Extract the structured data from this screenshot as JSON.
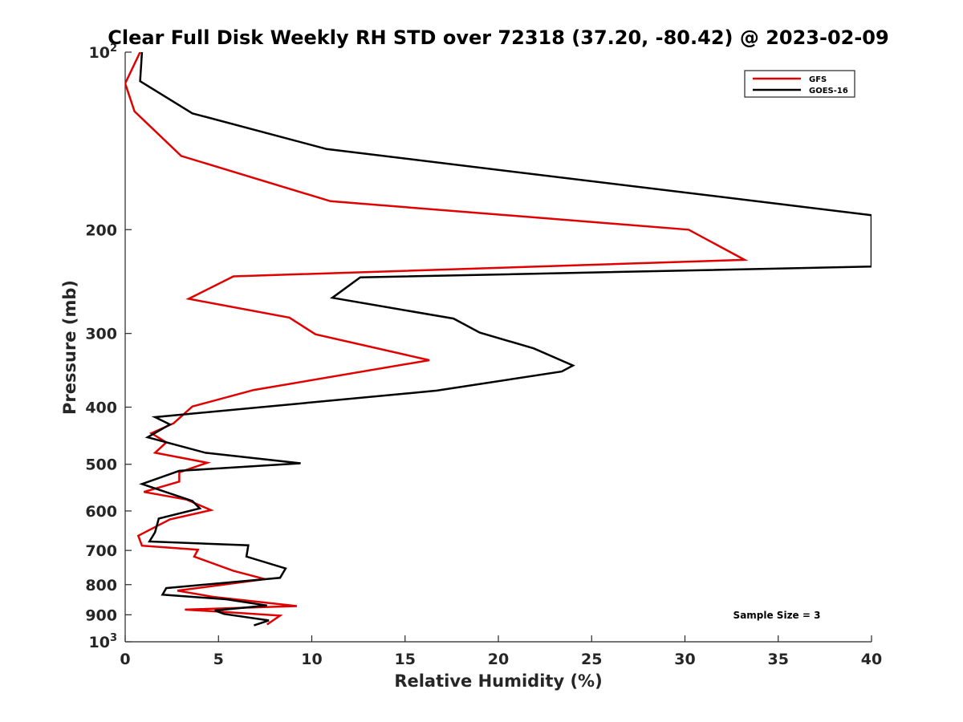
{
  "chart_data": {
    "type": "line",
    "title": "Clear Full Disk Weekly RH STD over 72318 (37.20, -80.42) @ 2023-02-09",
    "xlabel": "Relative Humidity (%)",
    "ylabel": "Pressure (mb)",
    "xlim": [
      0,
      40
    ],
    "ylim": [
      100,
      1000
    ],
    "y_scale": "log",
    "y_reversed": true,
    "x_ticks": [
      0,
      5,
      10,
      15,
      20,
      25,
      30,
      35,
      40
    ],
    "y_ticks": [
      {
        "value": 100,
        "base": "10",
        "exp": "2"
      },
      {
        "value": 200,
        "label": "200"
      },
      {
        "value": 300,
        "label": "300"
      },
      {
        "value": 400,
        "label": "400"
      },
      {
        "value": 500,
        "label": "500"
      },
      {
        "value": 600,
        "label": "600"
      },
      {
        "value": 700,
        "label": "700"
      },
      {
        "value": 800,
        "label": "800"
      },
      {
        "value": 900,
        "label": "900"
      },
      {
        "value": 1000,
        "base": "10",
        "exp": "3"
      }
    ],
    "grid": false,
    "legend_position": "top-right",
    "annotation": "Sample Size = 3",
    "series": [
      {
        "name": "GFS",
        "color": "#e00000",
        "points": [
          [
            0.8,
            100
          ],
          [
            0.0,
            113
          ],
          [
            0.5,
            126
          ],
          [
            3.0,
            150
          ],
          [
            11.0,
            179
          ],
          [
            30.2,
            200
          ],
          [
            33.2,
            225
          ],
          [
            5.8,
            240
          ],
          [
            3.4,
            262
          ],
          [
            8.8,
            282
          ],
          [
            10.2,
            301
          ],
          [
            16.3,
            333
          ],
          [
            6.9,
            374
          ],
          [
            3.6,
            399
          ],
          [
            2.6,
            426
          ],
          [
            1.4,
            443
          ],
          [
            2.2,
            459
          ],
          [
            1.6,
            478
          ],
          [
            4.4,
            497
          ],
          [
            2.9,
            516
          ],
          [
            2.9,
            535
          ],
          [
            1.0,
            557
          ],
          [
            3.3,
            574
          ],
          [
            4.6,
            598
          ],
          [
            2.4,
            620
          ],
          [
            0.7,
            661
          ],
          [
            0.9,
            687
          ],
          [
            3.9,
            698
          ],
          [
            3.7,
            717
          ],
          [
            5.8,
            758
          ],
          [
            7.5,
            783
          ],
          [
            2.8,
            819
          ],
          [
            4.8,
            840
          ],
          [
            9.2,
            870
          ],
          [
            3.2,
            882
          ],
          [
            5.0,
            889
          ],
          [
            8.3,
            903
          ],
          [
            7.6,
            935
          ]
        ]
      },
      {
        "name": "GOES-16",
        "color": "#000000",
        "points": [
          [
            0.9,
            100
          ],
          [
            0.8,
            112
          ],
          [
            3.6,
            127
          ],
          [
            10.8,
            146
          ],
          [
            40.0,
            189
          ],
          [
            40.0,
            231
          ],
          [
            12.6,
            241
          ],
          [
            11.1,
            261
          ],
          [
            17.6,
            283
          ],
          [
            19.0,
            299
          ],
          [
            21.9,
            318
          ],
          [
            24.0,
            340
          ],
          [
            23.4,
            348
          ],
          [
            16.7,
            375
          ],
          [
            1.6,
            416
          ],
          [
            2.4,
            428
          ],
          [
            1.2,
            450
          ],
          [
            4.3,
            478
          ],
          [
            9.4,
            498
          ],
          [
            2.9,
            513
          ],
          [
            0.9,
            540
          ],
          [
            3.6,
            577
          ],
          [
            4.0,
            594
          ],
          [
            1.8,
            618
          ],
          [
            1.6,
            652
          ],
          [
            1.3,
            676
          ],
          [
            6.6,
            686
          ],
          [
            6.5,
            717
          ],
          [
            8.6,
            751
          ],
          [
            8.3,
            779
          ],
          [
            2.2,
            811
          ],
          [
            2.0,
            832
          ],
          [
            5.4,
            847
          ],
          [
            7.6,
            868
          ],
          [
            4.8,
            885
          ],
          [
            5.3,
            897
          ],
          [
            7.7,
            920
          ],
          [
            6.9,
            938
          ]
        ]
      }
    ]
  }
}
